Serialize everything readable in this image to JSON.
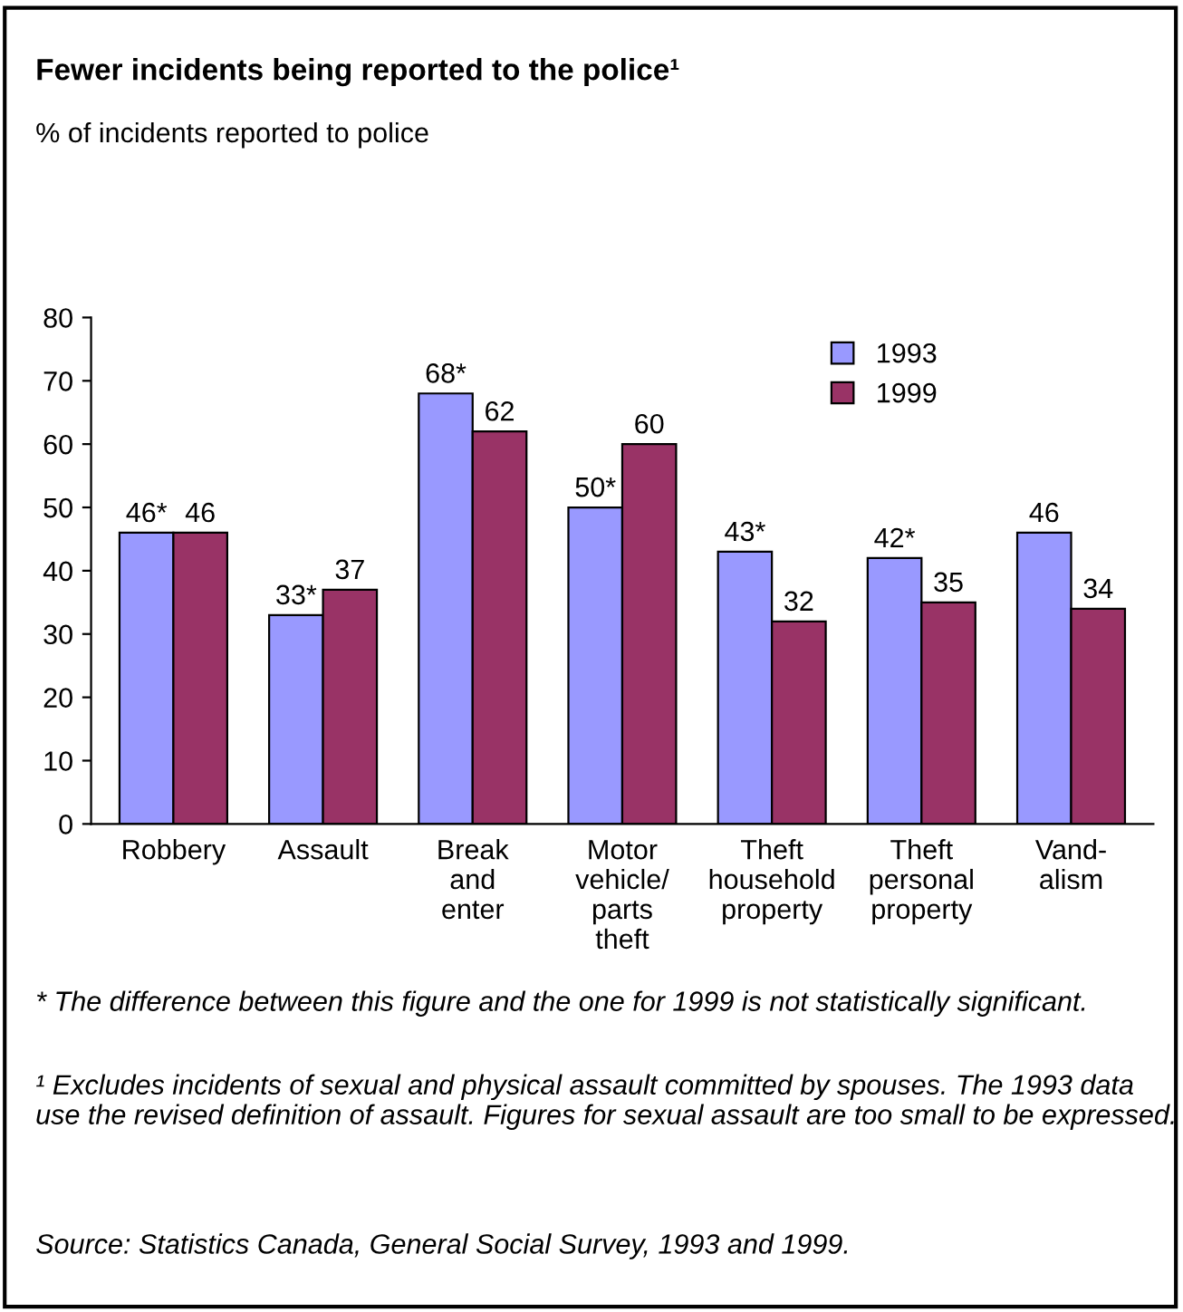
{
  "chart_data": {
    "type": "bar",
    "title": "Fewer incidents being reported to the police¹",
    "subtitle": "% of incidents reported to police",
    "categories": [
      "Robbery",
      "Assault",
      "Break and enter",
      "Motor vehicle/ parts theft",
      "Theft household property",
      "Theft personal property",
      "Vand- alism"
    ],
    "series": [
      {
        "name": "1993",
        "color": "#9999ff",
        "values": [
          46,
          33,
          68,
          50,
          43,
          42,
          46
        ],
        "value_labels": [
          "46*",
          "33*",
          "68*",
          "50*",
          "43*",
          "42*",
          "46"
        ]
      },
      {
        "name": "1999",
        "color": "#993366",
        "values": [
          46,
          37,
          62,
          60,
          32,
          35,
          34
        ],
        "value_labels": [
          "46",
          "37",
          "62",
          "60",
          "32",
          "35",
          "34"
        ]
      }
    ],
    "ylim": [
      0,
      80
    ],
    "yticks": [
      0,
      10,
      20,
      30,
      40,
      50,
      60,
      70,
      80
    ],
    "grid": false,
    "legend": "top right",
    "annotations": [
      "* The difference between this figure and the one for 1999 is not statistically significant.",
      "¹ Excludes incidents of sexual and physical assault committed by spouses. The 1993 data use the revised definition of assault. Figures for sexual assault are too small to be expressed.",
      "Source: Statistics Canada, General Social Survey, 1993 and 1999."
    ]
  }
}
